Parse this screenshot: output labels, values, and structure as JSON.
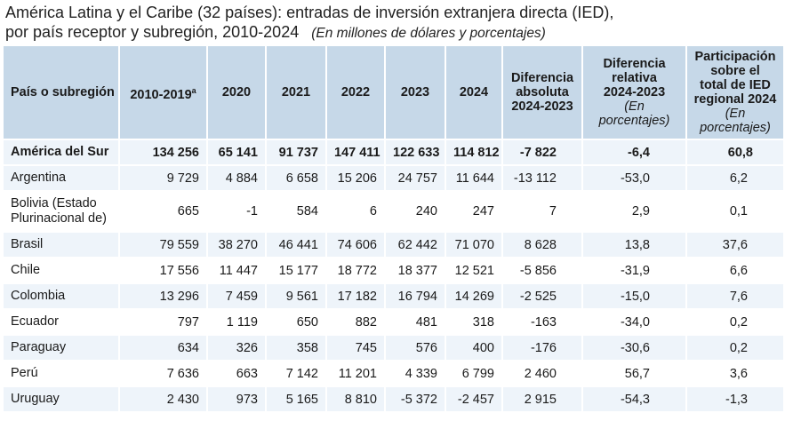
{
  "title": {
    "line1": "América Latina y el Caribe (32 países): entradas de inversión extranjera directa (IED),",
    "line2": "por país receptor y subregión, 2010-2024",
    "units": "(En millones de dólares y porcentajes)"
  },
  "columns": {
    "country": "País o subregión",
    "y2010_2019": "2010-2019",
    "y2010_2019_note": "a",
    "y2020": "2020",
    "y2021": "2021",
    "y2022": "2022",
    "y2023": "2023",
    "y2024": "2024",
    "abs_diff": [
      "Diferencia",
      "absoluta",
      "2024-2023"
    ],
    "rel_diff": [
      "Diferencia",
      "relativa",
      "2024-2023"
    ],
    "rel_diff_unit": "(En porcentajes)",
    "share": [
      "Participación",
      "sobre el",
      "total de IED",
      "regional 2024"
    ],
    "share_unit": "(En porcentajes)"
  },
  "rows": [
    {
      "name": "América del Sur",
      "v": [
        "134 256",
        "65 141",
        "91 737",
        "147 411",
        "122 633",
        "114 812",
        "-7 822",
        "-6,4",
        "60,8"
      ]
    },
    {
      "name": "Argentina",
      "v": [
        "9 729",
        "4 884",
        "6 658",
        "15 206",
        "24 757",
        "11 644",
        "-13 112",
        "-53,0",
        "6,2"
      ]
    },
    {
      "name": "Bolivia (Estado Plurinacional de)",
      "v": [
        "665",
        "-1",
        "584",
        "6",
        "240",
        "247",
        "7",
        "2,9",
        "0,1"
      ]
    },
    {
      "name": "Brasil",
      "v": [
        "79 559",
        "38 270",
        "46 441",
        "74 606",
        "62 442",
        "71 070",
        "8 628",
        "13,8",
        "37,6"
      ]
    },
    {
      "name": "Chile",
      "v": [
        "17 556",
        "11 447",
        "15 177",
        "18 772",
        "18 377",
        "12 521",
        "-5 856",
        "-31,9",
        "6,6"
      ]
    },
    {
      "name": "Colombia",
      "v": [
        "13 296",
        "7 459",
        "9 561",
        "17 182",
        "16 794",
        "14 269",
        "-2 525",
        "-15,0",
        "7,6"
      ]
    },
    {
      "name": "Ecuador",
      "v": [
        "797",
        "1 119",
        "650",
        "882",
        "481",
        "318",
        "-163",
        "-34,0",
        "0,2"
      ]
    },
    {
      "name": "Paraguay",
      "v": [
        "634",
        "326",
        "358",
        "745",
        "576",
        "400",
        "-176",
        "-30,6",
        "0,2"
      ]
    },
    {
      "name": "Perú",
      "v": [
        "7 636",
        "663",
        "7 142",
        "11 201",
        "4 339",
        "6 799",
        "2 460",
        "56,7",
        "3,6"
      ]
    },
    {
      "name": "Uruguay",
      "v": [
        "2 430",
        "973",
        "5 165",
        "8 810",
        "-5 372",
        "-2 457",
        "2 915",
        "-54,3",
        "-1,3"
      ]
    }
  ]
}
